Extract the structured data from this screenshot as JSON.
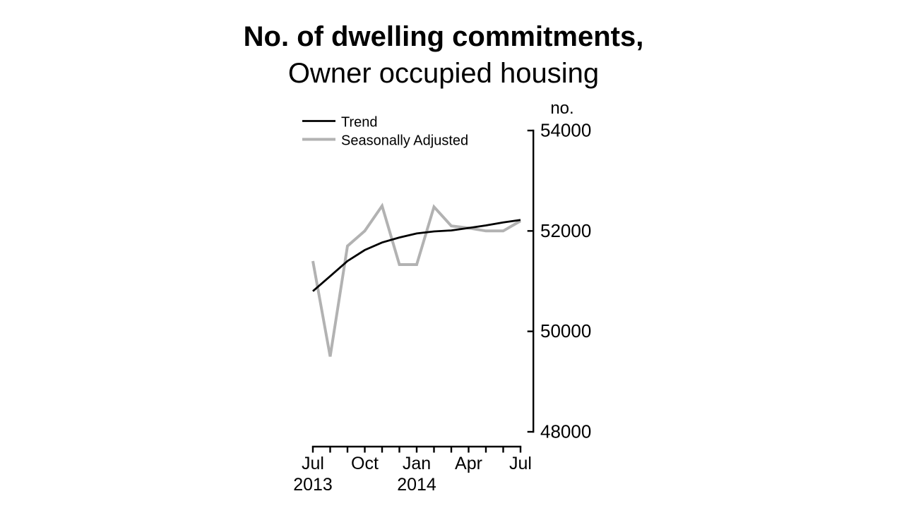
{
  "title": {
    "line1": "No. of dwelling commitments,",
    "line2": "Owner occupied housing"
  },
  "legend": {
    "items": [
      {
        "label": "Trend",
        "color": "#000000",
        "sample_width": 2.8
      },
      {
        "label": "Seasonally Adjusted",
        "color": "#b2b2b2",
        "sample_width": 4
      }
    ]
  },
  "y_axis": {
    "unit": "no.",
    "ticks": [
      54000,
      52000,
      50000,
      48000
    ]
  },
  "x_axis": {
    "month_tick_count": 13,
    "month_labels": [
      {
        "text": "Jul",
        "month_index": 0
      },
      {
        "text": "Oct",
        "month_index": 3
      },
      {
        "text": "Jan",
        "month_index": 6
      },
      {
        "text": "Apr",
        "month_index": 9
      },
      {
        "text": "Jul",
        "month_index": 12
      }
    ],
    "year_labels": [
      {
        "text": "2013",
        "month_index": 0
      },
      {
        "text": "2014",
        "month_index": 6
      }
    ]
  },
  "chart_data": {
    "type": "line",
    "title": "No. of dwelling commitments, Owner occupied housing",
    "ylabel": "no.",
    "xlabel": "",
    "x": [
      "Jul 2013",
      "Aug 2013",
      "Sep 2013",
      "Oct 2013",
      "Nov 2013",
      "Dec 2013",
      "Jan 2014",
      "Feb 2014",
      "Mar 2014",
      "Apr 2014",
      "May 2014",
      "Jun 2014",
      "Jul 2014"
    ],
    "series": [
      {
        "name": "Trend",
        "color": "#000000",
        "width": 2.8,
        "values": [
          50800,
          51100,
          51400,
          51620,
          51770,
          51870,
          51950,
          51990,
          52010,
          52060,
          52110,
          52170,
          52220
        ]
      },
      {
        "name": "Seasonally Adjusted",
        "color": "#b2b2b2",
        "width": 4,
        "values": [
          51400,
          49500,
          51700,
          52000,
          52500,
          51330,
          51330,
          52480,
          52100,
          52060,
          52000,
          52000,
          52200
        ]
      }
    ],
    "ylim": [
      48000,
      54000
    ],
    "y_ticks": [
      48000,
      50000,
      52000,
      54000
    ],
    "grid": false,
    "legend_position": "top-left",
    "y_axis_side": "right"
  }
}
